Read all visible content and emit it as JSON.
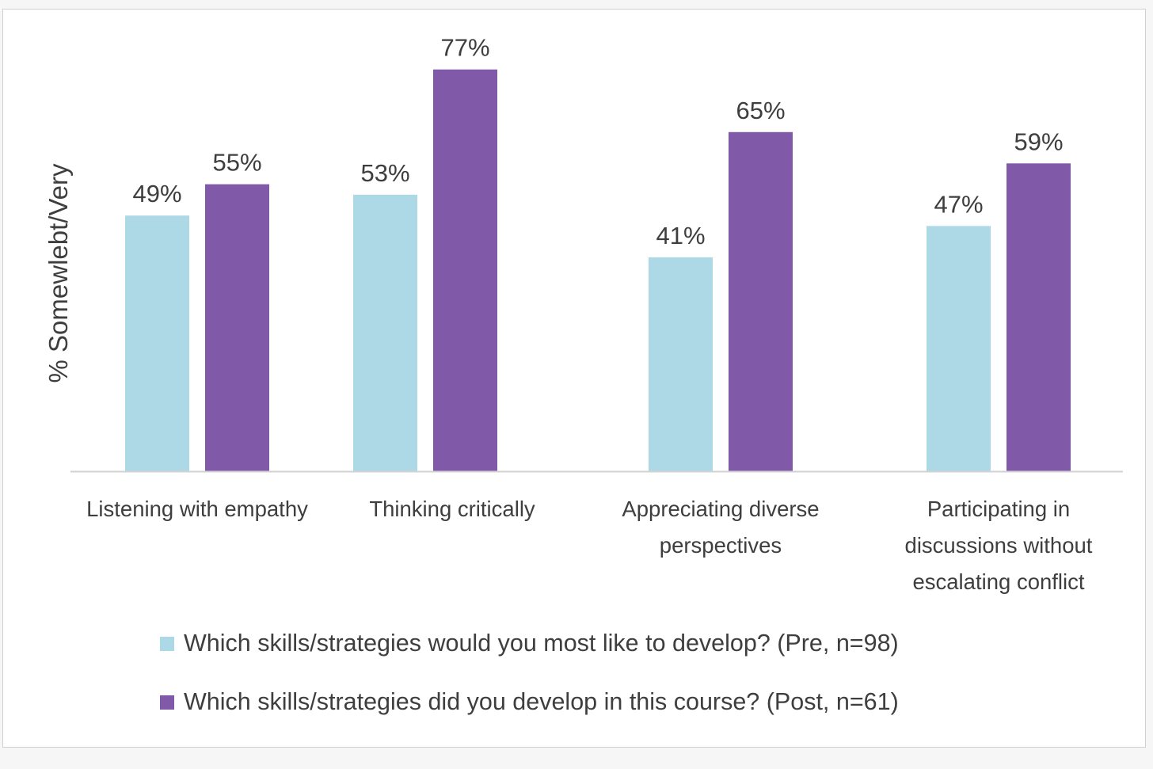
{
  "chart_data": {
    "type": "bar",
    "title": "",
    "xlabel": "",
    "ylabel": "% Somewlebt/Very",
    "ylim": [
      0,
      85
    ],
    "grid": false,
    "legend_position": "bottom",
    "categories": [
      [
        "Listening with empathy"
      ],
      [
        "Thinking critically"
      ],
      [
        "Appreciating diverse",
        "perspectives"
      ],
      [
        "Participating in",
        "discussions without",
        "escalating conflict"
      ]
    ],
    "series": [
      {
        "name": "Which skills/strategies would you most like to develop? (Pre, n=98)",
        "color": "#add8e6",
        "values": [
          49,
          53,
          41,
          47
        ],
        "labels": [
          "49%",
          "53%",
          "41%",
          "47%"
        ]
      },
      {
        "name": "Which skills/strategies did you develop in this course? (Post, n=61)",
        "color": "#8159a9",
        "values": [
          55,
          77,
          65,
          59
        ],
        "labels": [
          "55%",
          "77%",
          "65%",
          "59%"
        ]
      }
    ]
  }
}
